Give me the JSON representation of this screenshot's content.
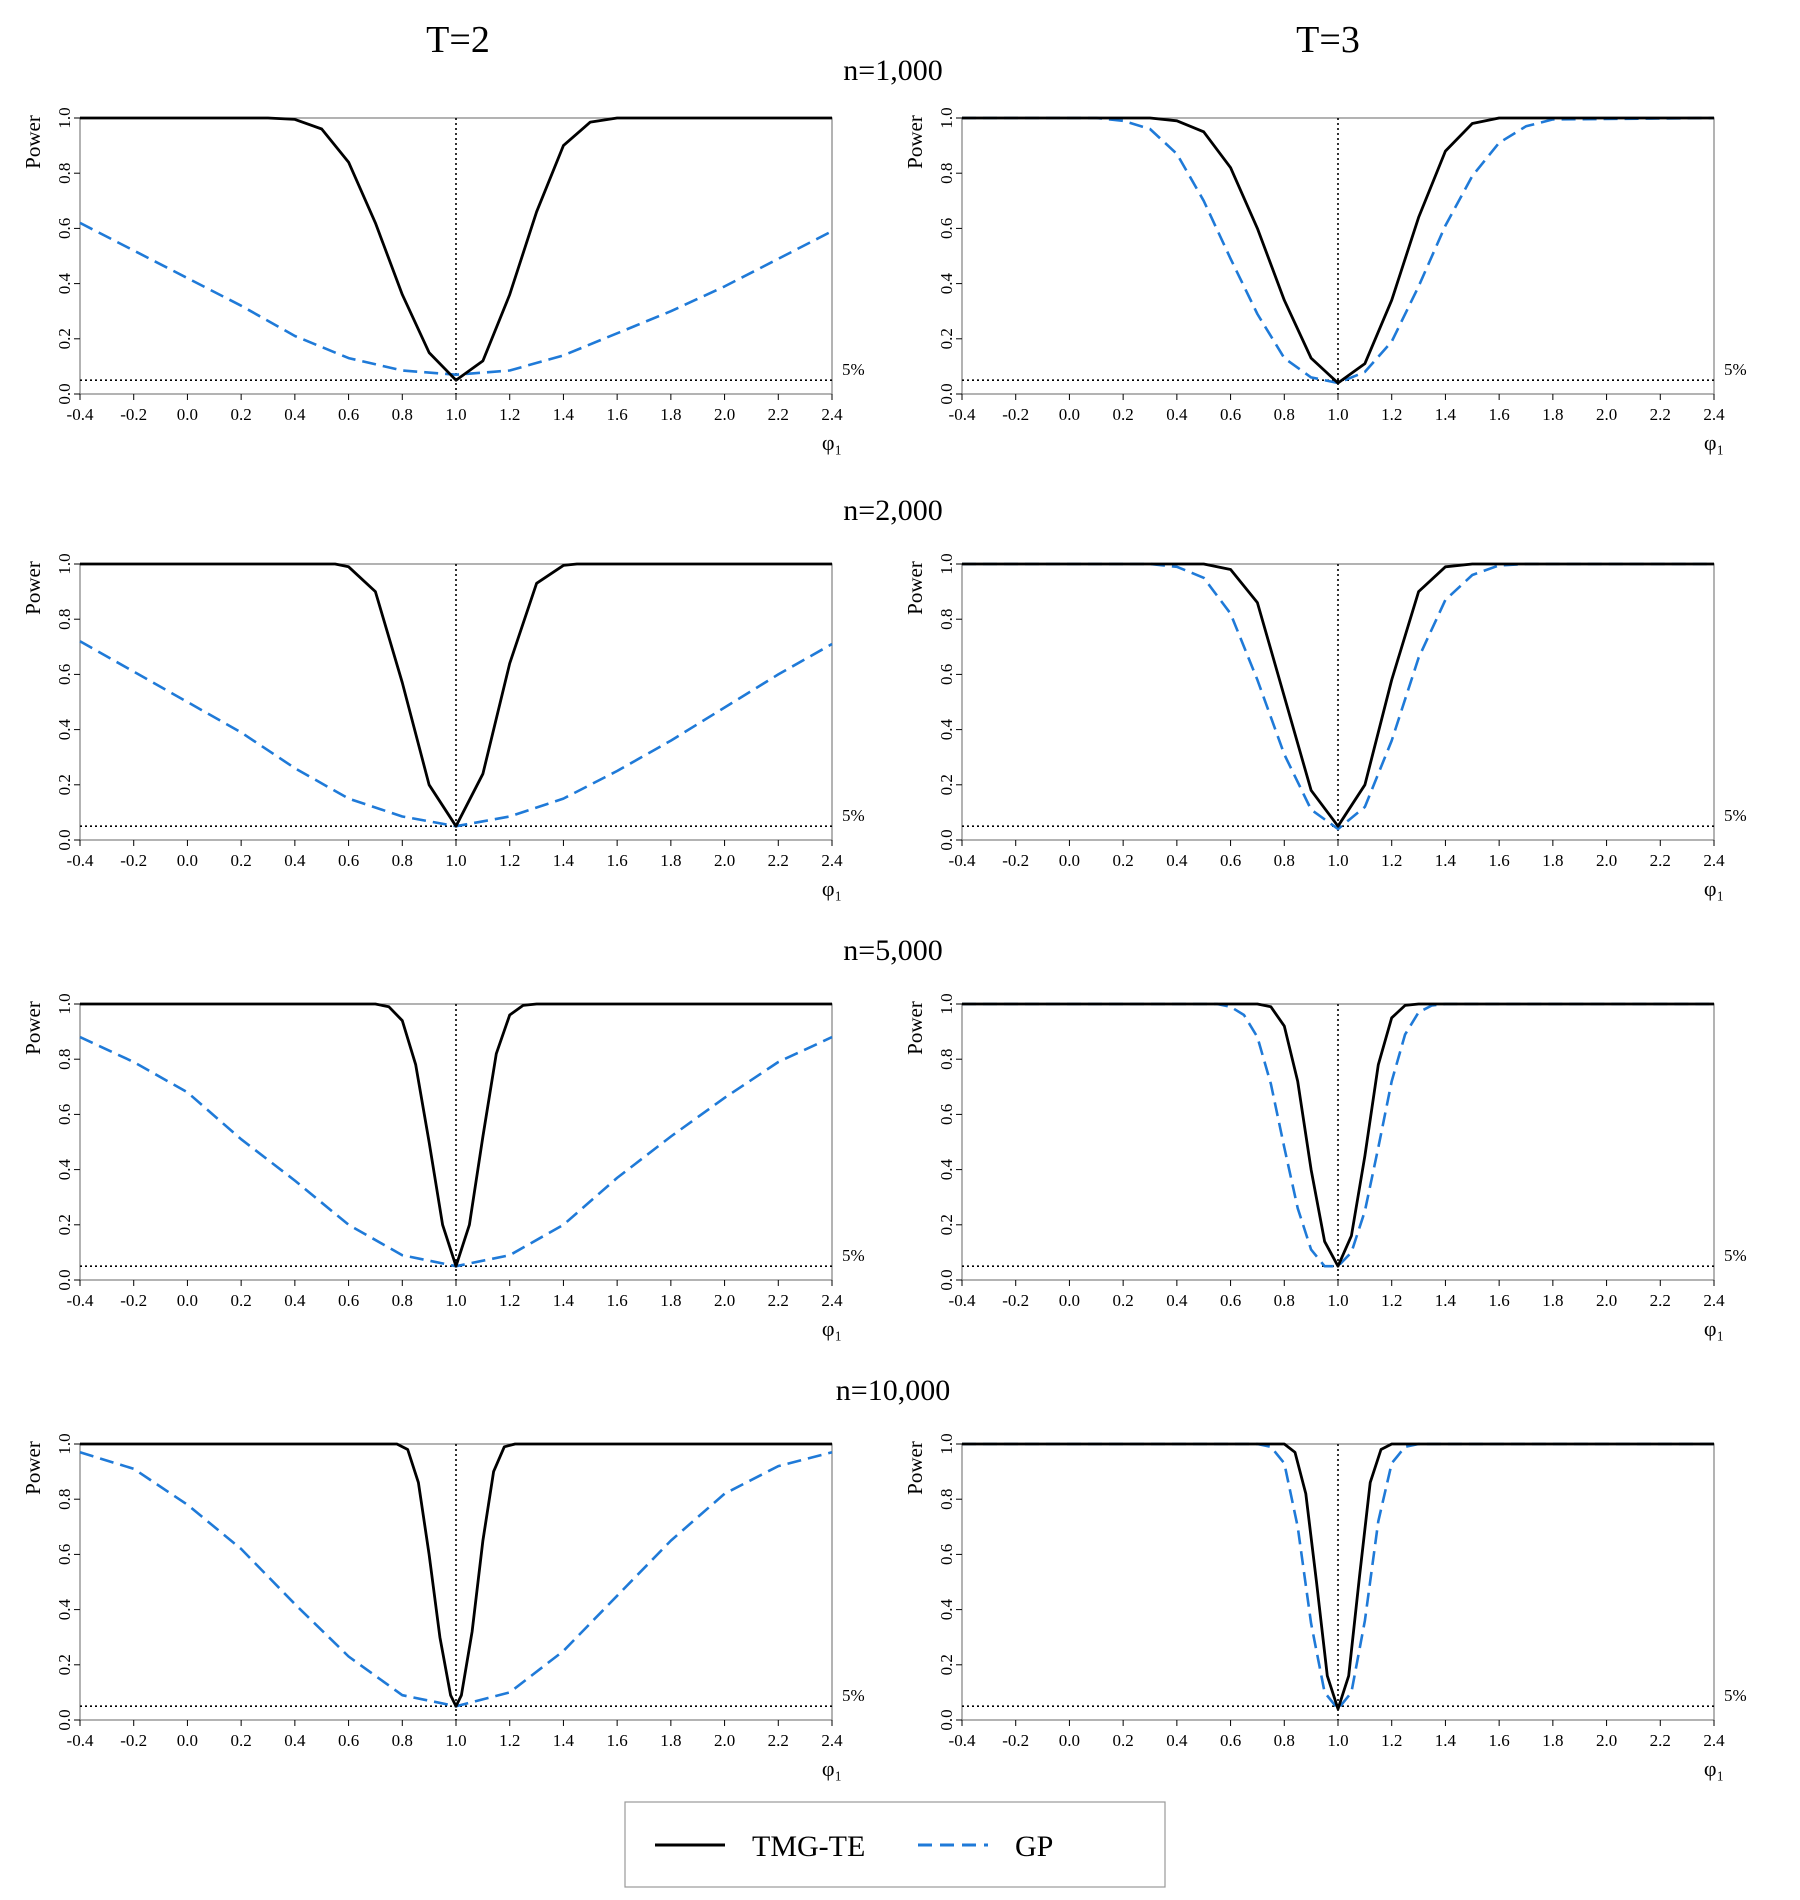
{
  "column_titles": [
    "T=2",
    "T=3"
  ],
  "row_titles": [
    "n=1,000",
    "n=2,000",
    "n=5,000",
    "n=10,000"
  ],
  "legend": {
    "items": [
      {
        "label": "TMG-TE",
        "style": "solid",
        "color": "#000000"
      },
      {
        "label": "GP",
        "style": "dashed",
        "color": "#1f7ad8"
      }
    ]
  },
  "colors": {
    "tmg_te": "#000000",
    "gp": "#1f7ad8",
    "axis_frame": "#808080"
  },
  "chart_data": [
    {
      "type": "line",
      "row": "n=1,000",
      "column": "T=2",
      "xlabel": "φ₁",
      "ylabel": "Power",
      "xlim": [
        -0.4,
        2.4
      ],
      "ylim": [
        0,
        1
      ],
      "x_ticks": [
        "-0.4",
        "-0.2",
        "0.0",
        "0.2",
        "0.4",
        "0.6",
        "0.8",
        "1.0",
        "1.2",
        "1.4",
        "1.6",
        "1.8",
        "2.0",
        "2.2",
        "2.4"
      ],
      "y_ticks": [
        "0.0",
        "0.2",
        "0.4",
        "0.6",
        "0.8",
        "1.0"
      ],
      "reference_lines": [
        {
          "axis": "y",
          "value": 0.05,
          "label": "5%"
        },
        {
          "axis": "x",
          "value": 1.0
        }
      ],
      "series": [
        {
          "name": "TMG-TE",
          "x": [
            -0.4,
            0.3,
            0.4,
            0.5,
            0.6,
            0.7,
            0.8,
            0.9,
            1.0,
            1.1,
            1.2,
            1.3,
            1.4,
            1.5,
            1.6,
            1.7,
            2.4
          ],
          "y": [
            1.0,
            1.0,
            0.995,
            0.96,
            0.84,
            0.62,
            0.36,
            0.15,
            0.05,
            0.12,
            0.36,
            0.66,
            0.9,
            0.985,
            1.0,
            1.0,
            1.0
          ]
        },
        {
          "name": "GP",
          "x": [
            -0.4,
            -0.2,
            0.0,
            0.2,
            0.4,
            0.6,
            0.8,
            1.0,
            1.2,
            1.4,
            1.6,
            1.8,
            2.0,
            2.2,
            2.4
          ],
          "y": [
            0.62,
            0.52,
            0.42,
            0.32,
            0.21,
            0.13,
            0.085,
            0.07,
            0.085,
            0.14,
            0.22,
            0.3,
            0.39,
            0.49,
            0.59
          ]
        }
      ]
    },
    {
      "type": "line",
      "row": "n=1,000",
      "column": "T=3",
      "xlabel": "φ₁",
      "ylabel": "Power",
      "xlim": [
        -0.4,
        2.4
      ],
      "ylim": [
        0,
        1
      ],
      "x_ticks": [
        "-0.4",
        "-0.2",
        "0.0",
        "0.2",
        "0.4",
        "0.6",
        "0.8",
        "1.0",
        "1.2",
        "1.4",
        "1.6",
        "1.8",
        "2.0",
        "2.2",
        "2.4"
      ],
      "y_ticks": [
        "0.0",
        "0.2",
        "0.4",
        "0.6",
        "0.8",
        "1.0"
      ],
      "reference_lines": [
        {
          "axis": "y",
          "value": 0.05,
          "label": "5%"
        },
        {
          "axis": "x",
          "value": 1.0
        }
      ],
      "series": [
        {
          "name": "TMG-TE",
          "x": [
            -0.4,
            0.3,
            0.4,
            0.5,
            0.6,
            0.7,
            0.8,
            0.9,
            1.0,
            1.1,
            1.2,
            1.3,
            1.4,
            1.5,
            1.6,
            1.7,
            2.4
          ],
          "y": [
            1.0,
            1.0,
            0.99,
            0.95,
            0.82,
            0.6,
            0.34,
            0.13,
            0.04,
            0.11,
            0.34,
            0.64,
            0.88,
            0.98,
            1.0,
            1.0,
            1.0
          ]
        },
        {
          "name": "GP",
          "x": [
            -0.4,
            0.1,
            0.2,
            0.3,
            0.4,
            0.5,
            0.6,
            0.7,
            0.8,
            0.9,
            1.0,
            1.1,
            1.2,
            1.3,
            1.4,
            1.5,
            1.6,
            1.7,
            1.8,
            2.4
          ],
          "y": [
            1.0,
            1.0,
            0.99,
            0.96,
            0.87,
            0.7,
            0.49,
            0.29,
            0.13,
            0.06,
            0.04,
            0.08,
            0.19,
            0.39,
            0.61,
            0.79,
            0.91,
            0.97,
            0.995,
            1.0
          ]
        }
      ]
    },
    {
      "type": "line",
      "row": "n=2,000",
      "column": "T=2",
      "xlabel": "φ₁",
      "ylabel": "Power",
      "xlim": [
        -0.4,
        2.4
      ],
      "ylim": [
        0,
        1
      ],
      "x_ticks": [
        "-0.4",
        "-0.2",
        "0.0",
        "0.2",
        "0.4",
        "0.6",
        "0.8",
        "1.0",
        "1.2",
        "1.4",
        "1.6",
        "1.8",
        "2.0",
        "2.2",
        "2.4"
      ],
      "y_ticks": [
        "0.0",
        "0.2",
        "0.4",
        "0.6",
        "0.8",
        "1.0"
      ],
      "reference_lines": [
        {
          "axis": "y",
          "value": 0.05,
          "label": "5%"
        },
        {
          "axis": "x",
          "value": 1.0
        }
      ],
      "series": [
        {
          "name": "TMG-TE",
          "x": [
            -0.4,
            0.55,
            0.6,
            0.7,
            0.8,
            0.9,
            1.0,
            1.1,
            1.2,
            1.3,
            1.4,
            1.45,
            2.4
          ],
          "y": [
            1.0,
            1.0,
            0.99,
            0.9,
            0.57,
            0.2,
            0.05,
            0.24,
            0.64,
            0.93,
            0.995,
            1.0,
            1.0
          ]
        },
        {
          "name": "GP",
          "x": [
            -0.4,
            -0.2,
            0.0,
            0.2,
            0.4,
            0.6,
            0.8,
            1.0,
            1.2,
            1.4,
            1.6,
            1.8,
            2.0,
            2.2,
            2.4
          ],
          "y": [
            0.72,
            0.61,
            0.5,
            0.39,
            0.26,
            0.15,
            0.085,
            0.05,
            0.085,
            0.15,
            0.25,
            0.36,
            0.48,
            0.6,
            0.71
          ]
        }
      ]
    },
    {
      "type": "line",
      "row": "n=2,000",
      "column": "T=3",
      "xlabel": "φ₁",
      "ylabel": "Power",
      "xlim": [
        -0.4,
        2.4
      ],
      "ylim": [
        0,
        1
      ],
      "x_ticks": [
        "-0.4",
        "-0.2",
        "0.0",
        "0.2",
        "0.4",
        "0.6",
        "0.8",
        "1.0",
        "1.2",
        "1.4",
        "1.6",
        "1.8",
        "2.0",
        "2.2",
        "2.4"
      ],
      "y_ticks": [
        "0.0",
        "0.2",
        "0.4",
        "0.6",
        "0.8",
        "1.0"
      ],
      "reference_lines": [
        {
          "axis": "y",
          "value": 0.05,
          "label": "5%"
        },
        {
          "axis": "x",
          "value": 1.0
        }
      ],
      "series": [
        {
          "name": "TMG-TE",
          "x": [
            -0.4,
            0.5,
            0.6,
            0.7,
            0.8,
            0.9,
            1.0,
            1.1,
            1.2,
            1.3,
            1.4,
            1.5,
            2.4
          ],
          "y": [
            1.0,
            1.0,
            0.98,
            0.86,
            0.52,
            0.18,
            0.05,
            0.2,
            0.58,
            0.9,
            0.99,
            1.0,
            1.0
          ]
        },
        {
          "name": "GP",
          "x": [
            -0.4,
            0.3,
            0.4,
            0.5,
            0.6,
            0.7,
            0.8,
            0.9,
            1.0,
            1.1,
            1.2,
            1.3,
            1.4,
            1.5,
            1.6,
            1.7,
            2.4
          ],
          "y": [
            1.0,
            1.0,
            0.99,
            0.95,
            0.82,
            0.58,
            0.31,
            0.11,
            0.04,
            0.12,
            0.36,
            0.66,
            0.87,
            0.96,
            0.995,
            1.0,
            1.0
          ]
        }
      ]
    },
    {
      "type": "line",
      "row": "n=5,000",
      "column": "T=2",
      "xlabel": "φ₁",
      "ylabel": "Power",
      "xlim": [
        -0.4,
        2.4
      ],
      "ylim": [
        0,
        1
      ],
      "x_ticks": [
        "-0.4",
        "-0.2",
        "0.0",
        "0.2",
        "0.4",
        "0.6",
        "0.8",
        "1.0",
        "1.2",
        "1.4",
        "1.6",
        "1.8",
        "2.0",
        "2.2",
        "2.4"
      ],
      "y_ticks": [
        "0.0",
        "0.2",
        "0.4",
        "0.6",
        "0.8",
        "1.0"
      ],
      "reference_lines": [
        {
          "axis": "y",
          "value": 0.05,
          "label": "5%"
        },
        {
          "axis": "x",
          "value": 1.0
        }
      ],
      "series": [
        {
          "name": "TMG-TE",
          "x": [
            -0.4,
            0.7,
            0.75,
            0.8,
            0.85,
            0.9,
            0.95,
            1.0,
            1.05,
            1.1,
            1.15,
            1.2,
            1.25,
            1.3,
            2.4
          ],
          "y": [
            1.0,
            1.0,
            0.99,
            0.94,
            0.78,
            0.5,
            0.2,
            0.05,
            0.2,
            0.52,
            0.82,
            0.96,
            0.995,
            1.0,
            1.0
          ]
        },
        {
          "name": "GP",
          "x": [
            -0.4,
            -0.2,
            0.0,
            0.2,
            0.4,
            0.6,
            0.8,
            1.0,
            1.2,
            1.4,
            1.6,
            1.8,
            2.0,
            2.2,
            2.4
          ],
          "y": [
            0.88,
            0.79,
            0.68,
            0.51,
            0.36,
            0.2,
            0.09,
            0.05,
            0.09,
            0.2,
            0.37,
            0.52,
            0.66,
            0.79,
            0.88
          ]
        }
      ]
    },
    {
      "type": "line",
      "row": "n=5,000",
      "column": "T=3",
      "xlabel": "φ₁",
      "ylabel": "Power",
      "xlim": [
        -0.4,
        2.4
      ],
      "ylim": [
        0,
        1
      ],
      "x_ticks": [
        "-0.4",
        "-0.2",
        "0.0",
        "0.2",
        "0.4",
        "0.6",
        "0.8",
        "1.0",
        "1.2",
        "1.4",
        "1.6",
        "1.8",
        "2.0",
        "2.2",
        "2.4"
      ],
      "y_ticks": [
        "0.0",
        "0.2",
        "0.4",
        "0.6",
        "0.8",
        "1.0"
      ],
      "reference_lines": [
        {
          "axis": "y",
          "value": 0.05,
          "label": "5%"
        },
        {
          "axis": "x",
          "value": 1.0
        }
      ],
      "series": [
        {
          "name": "TMG-TE",
          "x": [
            -0.4,
            0.7,
            0.75,
            0.8,
            0.85,
            0.9,
            0.95,
            1.0,
            1.05,
            1.1,
            1.15,
            1.2,
            1.25,
            1.3,
            2.4
          ],
          "y": [
            1.0,
            1.0,
            0.99,
            0.92,
            0.72,
            0.4,
            0.14,
            0.05,
            0.16,
            0.45,
            0.78,
            0.95,
            0.995,
            1.0,
            1.0
          ]
        },
        {
          "name": "GP",
          "x": [
            -0.4,
            0.55,
            0.6,
            0.65,
            0.7,
            0.75,
            0.8,
            0.85,
            0.9,
            0.95,
            1.0,
            1.05,
            1.1,
            1.15,
            1.2,
            1.25,
            1.3,
            1.35,
            1.4,
            2.4
          ],
          "y": [
            1.0,
            1.0,
            0.99,
            0.96,
            0.88,
            0.71,
            0.48,
            0.26,
            0.11,
            0.05,
            0.05,
            0.1,
            0.25,
            0.48,
            0.72,
            0.89,
            0.97,
            0.995,
            1.0,
            1.0
          ]
        }
      ]
    },
    {
      "type": "line",
      "row": "n=10,000",
      "column": "T=2",
      "xlabel": "φ₁",
      "ylabel": "Power",
      "xlim": [
        -0.4,
        2.4
      ],
      "ylim": [
        0,
        1
      ],
      "x_ticks": [
        "-0.4",
        "-0.2",
        "0.0",
        "0.2",
        "0.4",
        "0.6",
        "0.8",
        "1.0",
        "1.2",
        "1.4",
        "1.6",
        "1.8",
        "2.0",
        "2.2",
        "2.4"
      ],
      "y_ticks": [
        "0.0",
        "0.2",
        "0.4",
        "0.6",
        "0.8",
        "1.0"
      ],
      "reference_lines": [
        {
          "axis": "y",
          "value": 0.05,
          "label": "5%"
        },
        {
          "axis": "x",
          "value": 1.0
        }
      ],
      "series": [
        {
          "name": "TMG-TE",
          "x": [
            -0.4,
            0.78,
            0.82,
            0.86,
            0.9,
            0.94,
            0.98,
            1.0,
            1.02,
            1.06,
            1.1,
            1.14,
            1.18,
            1.22,
            2.4
          ],
          "y": [
            1.0,
            1.0,
            0.98,
            0.86,
            0.6,
            0.3,
            0.09,
            0.05,
            0.09,
            0.32,
            0.65,
            0.9,
            0.99,
            1.0,
            1.0
          ]
        },
        {
          "name": "GP",
          "x": [
            -0.4,
            -0.2,
            0.0,
            0.2,
            0.4,
            0.6,
            0.8,
            1.0,
            1.2,
            1.4,
            1.6,
            1.8,
            2.0,
            2.2,
            2.4
          ],
          "y": [
            0.97,
            0.91,
            0.78,
            0.62,
            0.42,
            0.23,
            0.09,
            0.05,
            0.1,
            0.25,
            0.45,
            0.65,
            0.82,
            0.92,
            0.97
          ]
        }
      ]
    },
    {
      "type": "line",
      "row": "n=10,000",
      "column": "T=3",
      "xlabel": "φ₁",
      "ylabel": "Power",
      "xlim": [
        -0.4,
        2.4
      ],
      "ylim": [
        0,
        1
      ],
      "x_ticks": [
        "-0.4",
        "-0.2",
        "0.0",
        "0.2",
        "0.4",
        "0.6",
        "0.8",
        "1.0",
        "1.2",
        "1.4",
        "1.6",
        "1.8",
        "2.0",
        "2.2",
        "2.4"
      ],
      "y_ticks": [
        "0.0",
        "0.2",
        "0.4",
        "0.6",
        "0.8",
        "1.0"
      ],
      "reference_lines": [
        {
          "axis": "y",
          "value": 0.05,
          "label": "5%"
        },
        {
          "axis": "x",
          "value": 1.0
        }
      ],
      "series": [
        {
          "name": "TMG-TE",
          "x": [
            -0.4,
            0.8,
            0.84,
            0.88,
            0.92,
            0.96,
            1.0,
            1.04,
            1.08,
            1.12,
            1.16,
            1.2,
            2.4
          ],
          "y": [
            1.0,
            1.0,
            0.97,
            0.82,
            0.5,
            0.16,
            0.04,
            0.16,
            0.52,
            0.86,
            0.98,
            1.0,
            1.0
          ]
        },
        {
          "name": "GP",
          "x": [
            -0.4,
            0.7,
            0.75,
            0.8,
            0.85,
            0.9,
            0.95,
            1.0,
            1.05,
            1.1,
            1.15,
            1.2,
            1.25,
            1.3,
            2.4
          ],
          "y": [
            1.0,
            1.0,
            0.99,
            0.93,
            0.7,
            0.35,
            0.1,
            0.04,
            0.1,
            0.36,
            0.72,
            0.93,
            0.99,
            1.0,
            1.0
          ]
        }
      ]
    }
  ]
}
